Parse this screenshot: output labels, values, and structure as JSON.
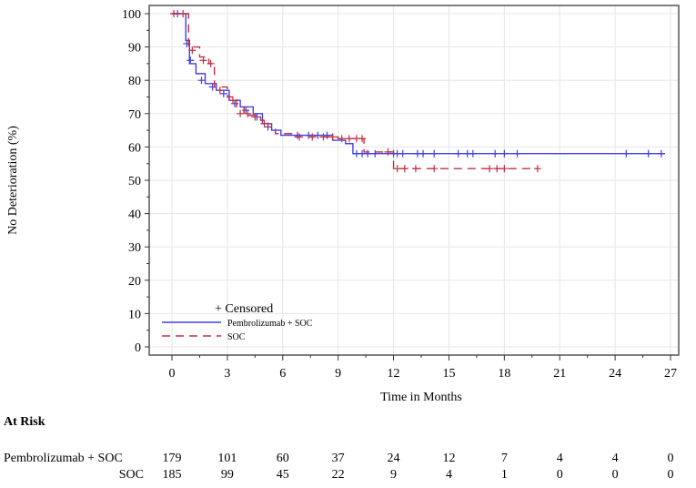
{
  "chart_data": {
    "type": "line",
    "subtype": "kaplan-meier step",
    "xlabel": "Time in Months",
    "ylabel": "No Deterioration (%)",
    "xlim": [
      0,
      27
    ],
    "ylim": [
      0,
      100
    ],
    "xticks": [
      0,
      3,
      6,
      9,
      12,
      15,
      18,
      21,
      24,
      27
    ],
    "yticks": [
      0,
      10,
      20,
      30,
      40,
      50,
      60,
      70,
      80,
      90,
      100
    ],
    "grid": true,
    "legend": {
      "position": "bottom-left",
      "censored_label": "+ Censored",
      "entries": [
        "Pembrolizumab + SOC",
        "SOC"
      ]
    },
    "series": [
      {
        "name": "Pembrolizumab + SOC",
        "color": "#4040e0",
        "dash": "solid",
        "steps": [
          [
            0,
            100
          ],
          [
            0.75,
            92
          ],
          [
            0.95,
            85
          ],
          [
            1.3,
            82
          ],
          [
            1.8,
            79
          ],
          [
            2.4,
            77
          ],
          [
            3.1,
            74
          ],
          [
            3.7,
            72
          ],
          [
            4.4,
            70
          ],
          [
            4.9,
            67
          ],
          [
            5.4,
            65
          ],
          [
            5.9,
            63.5
          ],
          [
            8.7,
            62
          ],
          [
            9.4,
            61
          ],
          [
            9.8,
            58
          ],
          [
            26.7,
            58
          ]
        ],
        "censored": [
          [
            0.3,
            100
          ],
          [
            0.8,
            91
          ],
          [
            1.0,
            86
          ],
          [
            1.6,
            80
          ],
          [
            2.2,
            78
          ],
          [
            2.8,
            76
          ],
          [
            3.4,
            73
          ],
          [
            4.0,
            71
          ],
          [
            4.6,
            69
          ],
          [
            5.2,
            66
          ],
          [
            6.8,
            63.5
          ],
          [
            7.4,
            63.5
          ],
          [
            7.9,
            63.5
          ],
          [
            8.4,
            63.5
          ],
          [
            10.0,
            58
          ],
          [
            10.3,
            58
          ],
          [
            10.6,
            58
          ],
          [
            11.0,
            58
          ],
          [
            12.0,
            58
          ],
          [
            12.2,
            58
          ],
          [
            12.5,
            58
          ],
          [
            13.3,
            58
          ],
          [
            13.6,
            58
          ],
          [
            14.2,
            58
          ],
          [
            15.5,
            58
          ],
          [
            16.0,
            58
          ],
          [
            16.3,
            58
          ],
          [
            17.5,
            58
          ],
          [
            18.0,
            58
          ],
          [
            18.7,
            58
          ],
          [
            24.6,
            58
          ],
          [
            25.8,
            58
          ],
          [
            26.5,
            58
          ]
        ]
      },
      {
        "name": "SOC",
        "color": "#c03040",
        "dash": "dashed",
        "steps": [
          [
            0,
            100
          ],
          [
            0.8,
            100
          ],
          [
            0.9,
            90
          ],
          [
            1.5,
            87
          ],
          [
            2.0,
            85
          ],
          [
            2.3,
            78
          ],
          [
            3.0,
            75
          ],
          [
            3.5,
            72
          ],
          [
            3.9,
            69.5
          ],
          [
            4.8,
            68
          ],
          [
            5.2,
            66
          ],
          [
            5.6,
            64
          ],
          [
            6.6,
            63
          ],
          [
            9.0,
            62.5
          ],
          [
            10.4,
            58.5
          ],
          [
            12.0,
            53.5
          ],
          [
            19.8,
            53.5
          ]
        ],
        "censored": [
          [
            0.1,
            100
          ],
          [
            0.6,
            100
          ],
          [
            1.1,
            89
          ],
          [
            1.7,
            86
          ],
          [
            2.1,
            85
          ],
          [
            2.6,
            77
          ],
          [
            3.3,
            74
          ],
          [
            3.7,
            70
          ],
          [
            4.1,
            70
          ],
          [
            4.5,
            69
          ],
          [
            5.0,
            67
          ],
          [
            6.9,
            63
          ],
          [
            7.6,
            63
          ],
          [
            8.2,
            63
          ],
          [
            8.7,
            63
          ],
          [
            9.2,
            62.5
          ],
          [
            9.6,
            62.5
          ],
          [
            10.0,
            62.5
          ],
          [
            10.3,
            62.5
          ],
          [
            11.7,
            58.5
          ],
          [
            12.2,
            53.5
          ],
          [
            12.6,
            53.5
          ],
          [
            13.2,
            53.5
          ],
          [
            14.2,
            53.5
          ],
          [
            17.2,
            53.5
          ],
          [
            17.6,
            53.5
          ],
          [
            18.0,
            53.5
          ],
          [
            19.8,
            53.5
          ]
        ]
      }
    ]
  },
  "at_risk": {
    "title": "At Risk",
    "rows": [
      {
        "label": "Pembrolizumab + SOC",
        "values": [
          "179",
          "101",
          "60",
          "37",
          "24",
          "12",
          "7",
          "4",
          "4",
          "0"
        ]
      },
      {
        "label": "SOC",
        "values": [
          "185",
          "99",
          "45",
          "22",
          "9",
          "4",
          "1",
          "0",
          "0",
          "0"
        ]
      }
    ]
  }
}
